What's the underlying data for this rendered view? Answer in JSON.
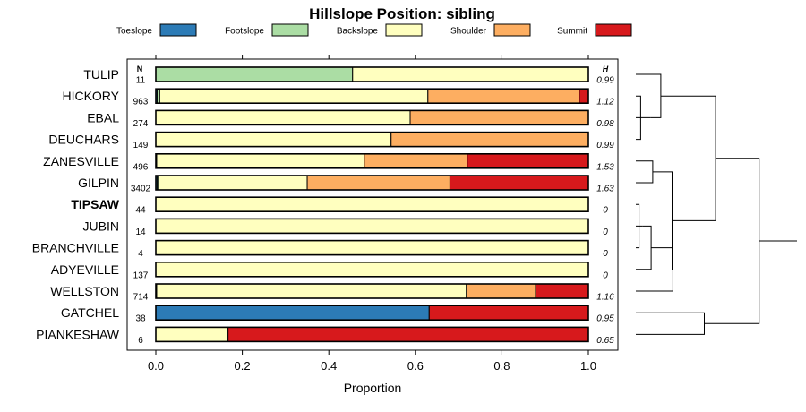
{
  "chart_data": {
    "type": "bar",
    "orientation": "horizontal",
    "stacked": true,
    "title": "Hillslope Position: sibling",
    "xlabel": "Proportion",
    "ylabel": "",
    "xlim": [
      0,
      1
    ],
    "x_ticks": [
      "0.0",
      "0.2",
      "0.4",
      "0.6",
      "0.8",
      "1.0"
    ],
    "legend_placement": "top",
    "n_header": "N",
    "h_header": "H",
    "series": [
      {
        "name": "Toeslope",
        "color": "#2c7bb6"
      },
      {
        "name": "Footslope",
        "color": "#abdda4"
      },
      {
        "name": "Backslope",
        "color": "#ffffbf"
      },
      {
        "name": "Shoulder",
        "color": "#fdae61"
      },
      {
        "name": "Summit",
        "color": "#d7191c"
      }
    ],
    "rows": [
      {
        "label": "TULIP",
        "n": "11",
        "h": "0.99",
        "bold": false,
        "values": [
          0,
          0.455,
          0.545,
          0,
          0
        ]
      },
      {
        "label": "HICKORY",
        "n": "963",
        "h": "1.12",
        "bold": false,
        "values": [
          0.003,
          0.006,
          0.62,
          0.35,
          0.021
        ]
      },
      {
        "label": "EBAL",
        "n": "274",
        "h": "0.98",
        "bold": false,
        "values": [
          0,
          0,
          0.588,
          0.412,
          0
        ]
      },
      {
        "label": "DEUCHARS",
        "n": "149",
        "h": "0.99",
        "bold": false,
        "values": [
          0,
          0,
          0.544,
          0.456,
          0
        ]
      },
      {
        "label": "ZANESVILLE",
        "n": "496",
        "h": "1.53",
        "bold": false,
        "values": [
          0.002,
          0,
          0.48,
          0.238,
          0.28
        ]
      },
      {
        "label": "GILPIN",
        "n": "3402",
        "h": "1.63",
        "bold": false,
        "values": [
          0.003,
          0.003,
          0.344,
          0.33,
          0.32
        ]
      },
      {
        "label": "TIPSAW",
        "n": "44",
        "h": "0",
        "bold": true,
        "values": [
          0,
          0,
          1,
          0,
          0
        ]
      },
      {
        "label": "JUBIN",
        "n": "14",
        "h": "0",
        "bold": false,
        "values": [
          0,
          0,
          1,
          0,
          0
        ]
      },
      {
        "label": "BRANCHVILLE",
        "n": "4",
        "h": "0",
        "bold": false,
        "values": [
          0,
          0,
          1,
          0,
          0
        ]
      },
      {
        "label": "ADYEVILLE",
        "n": "137",
        "h": "0",
        "bold": false,
        "values": [
          0,
          0,
          1,
          0,
          0
        ]
      },
      {
        "label": "WELLSTON",
        "n": "714",
        "h": "1.16",
        "bold": false,
        "values": [
          0.002,
          0,
          0.716,
          0.16,
          0.122
        ]
      },
      {
        "label": "GATCHEL",
        "n": "38",
        "h": "0.95",
        "bold": false,
        "values": [
          0.632,
          0,
          0,
          0,
          0.368
        ]
      },
      {
        "label": "PIANKESHAW",
        "n": "6",
        "h": "0.65",
        "bold": false,
        "values": [
          0,
          0,
          0.167,
          0,
          0.833
        ]
      }
    ],
    "dendrogram": {
      "merges": [
        {
          "a": "row:1",
          "b": "row:3",
          "height": 0.03
        },
        {
          "a": "row:6",
          "b": "row:8",
          "height": 0.02
        },
        {
          "a": "row:7",
          "b": "m1",
          "height": 0.04
        },
        {
          "a": "row:2",
          "b": "m0",
          "height": 0.09
        },
        {
          "a": "row:0",
          "b": "m3",
          "height": 0.155
        },
        {
          "a": "row:4",
          "b": "row:5",
          "height": 0.105
        },
        {
          "a": "m2",
          "b": "row:9",
          "height": 0.095
        },
        {
          "a": "row:11",
          "b": "row:12",
          "height": 0.425
        },
        {
          "a": "m6",
          "b": "row:10",
          "height": 0.23
        },
        {
          "a": "m5",
          "b": "m8",
          "height": 0.225
        },
        {
          "a": "m4",
          "b": "m9",
          "height": 0.495
        },
        {
          "a": "m10",
          "b": "m7",
          "height": 0.765
        }
      ]
    }
  }
}
